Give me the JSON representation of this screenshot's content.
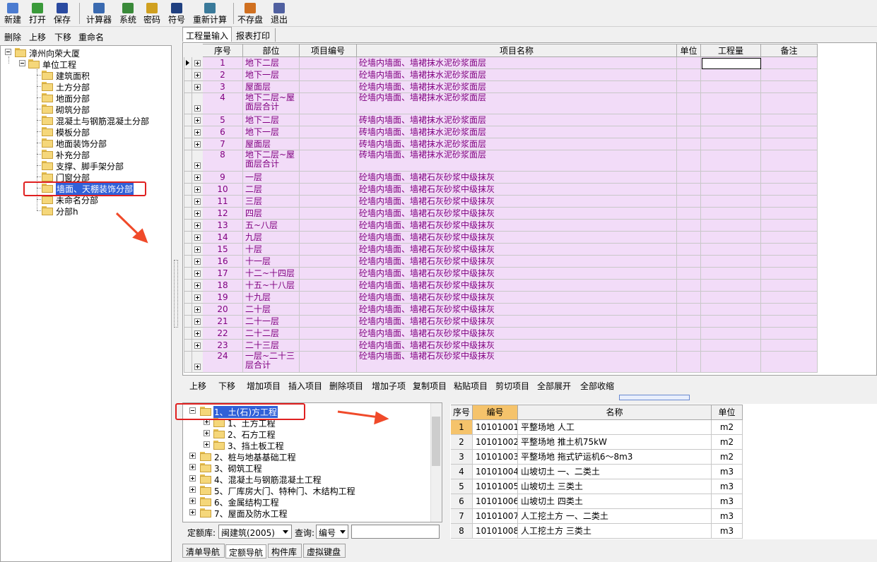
{
  "toolbar": [
    "新建",
    "打开",
    "保存",
    "计算器",
    "系统",
    "密码",
    "符号",
    "重新计算",
    "不存盘",
    "退出"
  ],
  "left_toolbar": [
    "删除",
    "上移",
    "下移",
    "重命名"
  ],
  "project_tree": {
    "root": "漳州向荣大厦",
    "unit": "单位工程",
    "items": [
      "建筑面积",
      "土方分部",
      "地面分部",
      "砌筑分部",
      "混凝土与钢筋混凝土分部",
      "模板分部",
      "地面装饰分部",
      "补充分部",
      "支撑、脚手架分部",
      "门窗分部",
      "墙面、天棚装饰分部",
      "未命名分部",
      "分部h"
    ]
  },
  "tabs": [
    "工程量输入",
    "报表打印"
  ],
  "grid": {
    "headers": [
      "序号",
      "部位",
      "项目编号",
      "项目名称",
      "单位",
      "工程量",
      "备注"
    ],
    "rows": [
      [
        1,
        "地下二层",
        "砼墙内墙面、墙裙抹水泥砂浆面层"
      ],
      [
        2,
        "地下一层",
        "砼墙内墙面、墙裙抹水泥砂浆面层"
      ],
      [
        3,
        "屋面层",
        "砼墙内墙面、墙裙抹水泥砂浆面层"
      ],
      [
        4,
        "地下二层~屋面层合计",
        "砼墙内墙面、墙裙抹水泥砂浆面层"
      ],
      [
        5,
        "地下二层",
        "砖墙内墙面、墙裙抹水泥砂浆面层"
      ],
      [
        6,
        "地下一层",
        "砖墙内墙面、墙裙抹水泥砂浆面层"
      ],
      [
        7,
        "屋面层",
        "砖墙内墙面、墙裙抹水泥砂浆面层"
      ],
      [
        8,
        "地下二层~屋面层合计",
        "砖墙内墙面、墙裙抹水泥砂浆面层"
      ],
      [
        9,
        "一层",
        "砼墙内墙面、墙裙石灰砂浆中级抹灰"
      ],
      [
        10,
        "二层",
        "砼墙内墙面、墙裙石灰砂浆中级抹灰"
      ],
      [
        11,
        "三层",
        "砼墙内墙面、墙裙石灰砂浆中级抹灰"
      ],
      [
        12,
        "四层",
        "砼墙内墙面、墙裙石灰砂浆中级抹灰"
      ],
      [
        13,
        "五~八层",
        "砼墙内墙面、墙裙石灰砂浆中级抹灰"
      ],
      [
        14,
        "九层",
        "砼墙内墙面、墙裙石灰砂浆中级抹灰"
      ],
      [
        15,
        "十层",
        "砼墙内墙面、墙裙石灰砂浆中级抹灰"
      ],
      [
        16,
        "十一层",
        "砼墙内墙面、墙裙石灰砂浆中级抹灰"
      ],
      [
        17,
        "十二~十四层",
        "砼墙内墙面、墙裙石灰砂浆中级抹灰"
      ],
      [
        18,
        "十五~十八层",
        "砼墙内墙面、墙裙石灰砂浆中级抹灰"
      ],
      [
        19,
        "十九层",
        "砼墙内墙面、墙裙石灰砂浆中级抹灰"
      ],
      [
        20,
        "二十层",
        "砼墙内墙面、墙裙石灰砂浆中级抹灰"
      ],
      [
        21,
        "二十一层",
        "砼墙内墙面、墙裙石灰砂浆中级抹灰"
      ],
      [
        22,
        "二十二层",
        "砼墙内墙面、墙裙石灰砂浆中级抹灰"
      ],
      [
        23,
        "二十三层",
        "砼墙内墙面、墙裙石灰砂浆中级抹灰"
      ],
      [
        24,
        "一层~二十三层合计",
        "砼墙内墙面、墙裙石灰砂浆中级抹灰"
      ]
    ]
  },
  "actions": [
    "上移",
    "下移",
    "增加项目",
    "插入项目",
    "删除项目",
    "增加子项",
    "复制项目",
    "粘贴项目",
    "剪切项目",
    "全部展开",
    "全部收缩"
  ],
  "quota_tree": {
    "expanded": "1、土(石)方工程",
    "children": [
      "1、土方工程",
      "2、石方工程",
      "3、挡土板工程"
    ],
    "others": [
      "2、桩与地基基础工程",
      "3、砌筑工程",
      "4、混凝土与钢筋混凝土工程",
      "5、厂库房大门、特种门、木结构工程",
      "6、金属结构工程",
      "7、屋面及防水工程"
    ]
  },
  "filter": {
    "library_label": "定额库:",
    "library": "闽建筑(2005)",
    "query_label": "查询:",
    "query": "编号"
  },
  "quota_table": {
    "headers": [
      "序号",
      "编号",
      "名称",
      "单位"
    ],
    "rows": [
      [
        1,
        "10101001",
        "平整场地 人工",
        "m2"
      ],
      [
        2,
        "10101002",
        "平整场地 推土机75kW",
        "m2"
      ],
      [
        3,
        "10101003",
        "平整场地 拖式铲运机6～8m3",
        "m2"
      ],
      [
        4,
        "10101004",
        "山坡切土 一、二类土",
        "m3"
      ],
      [
        5,
        "10101005",
        "山坡切土 三类土",
        "m3"
      ],
      [
        6,
        "10101006",
        "山坡切土 四类土",
        "m3"
      ],
      [
        7,
        "10101007",
        "人工挖土方 一、二类土",
        "m3"
      ],
      [
        8,
        "10101008",
        "人工挖土方 三类土",
        "m3"
      ]
    ]
  },
  "bottom_tabs": [
    "清单导航",
    "定额导航",
    "构件库",
    "虚拟键盘"
  ]
}
